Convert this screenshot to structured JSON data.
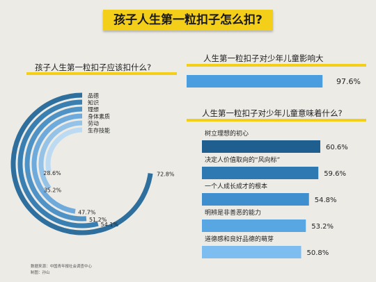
{
  "title": "孩子人生第一粒扣子怎么扣?",
  "source": {
    "line1": "数据来源：中国青年报社会调查中心",
    "line2": "制图：孙山"
  },
  "chart_data": [
    {
      "type": "radial-bar",
      "title": "孩子人生第一粒扣子应该扣什么?",
      "categories": [
        "品德",
        "知识",
        "理想",
        "身体素质",
        "劳动",
        "生存技能"
      ],
      "values": [
        72.8,
        54.1,
        51.2,
        47.7,
        35.2,
        28.6
      ],
      "labels": [
        "72.8%",
        "54.1%",
        "51.2%",
        "47.7%",
        "35.2%",
        "28.6%"
      ],
      "colors": [
        "#2e6f9e",
        "#3a7fb1",
        "#4f93c6",
        "#6eaadb",
        "#95c3e8",
        "#bcdaf2"
      ]
    },
    {
      "type": "bar",
      "title": "人生第一粒扣子对少年儿童影响大",
      "categories": [
        ""
      ],
      "values": [
        97.6
      ],
      "labels": [
        "97.6%"
      ],
      "colors": [
        "#4a9ee0"
      ]
    },
    {
      "type": "bar",
      "title": "人生第一粒扣子对少年儿童意味着什么?",
      "categories": [
        "树立理想的初心",
        "决定人价值取向的“风向标”",
        "一个人成长成才的根本",
        "明辨是非善恶的能力",
        "道德感和良好品德的萌芽"
      ],
      "values": [
        60.6,
        59.6,
        54.8,
        53.2,
        50.8
      ],
      "labels": [
        "60.6%",
        "59.6%",
        "54.8%",
        "53.2%",
        "50.8%"
      ],
      "colors": [
        "#1f5f8f",
        "#2f79b3",
        "#3f8fcf",
        "#58a6e2",
        "#7dbdf0"
      ]
    }
  ]
}
